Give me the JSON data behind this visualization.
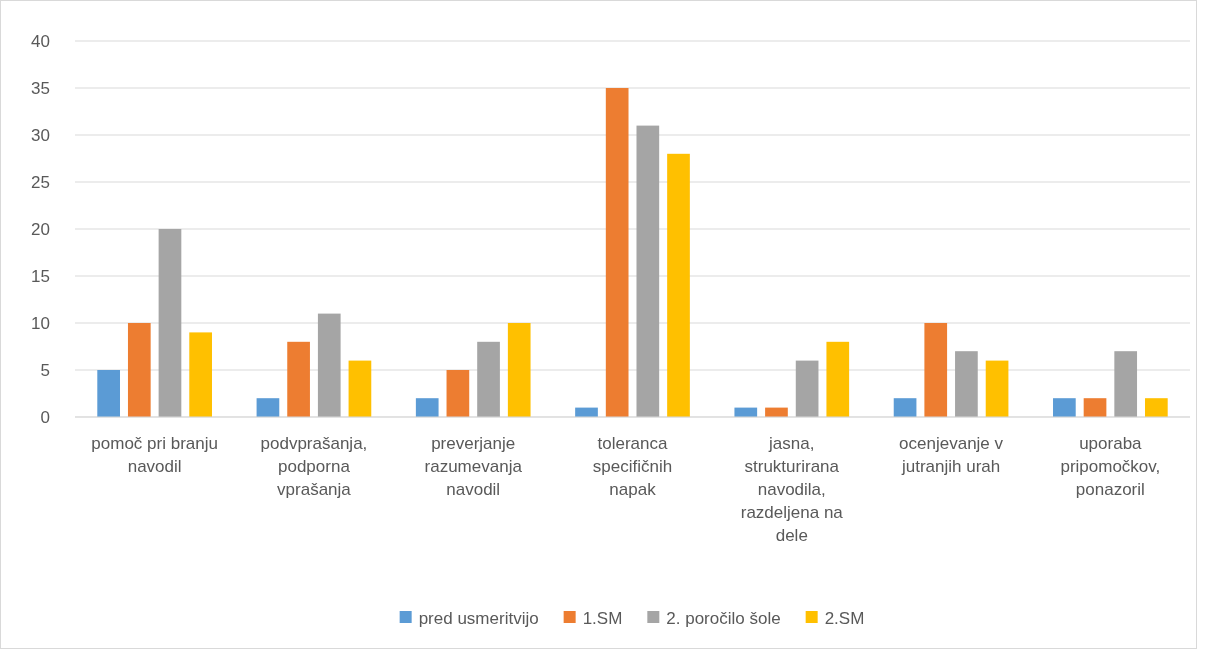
{
  "chart_data": {
    "type": "bar",
    "categories": [
      "pomoč pri branju navodil",
      "podvprašanja, podporna vprašanja",
      "preverjanje razumevanja navodil",
      "toleranca specifičnih napak",
      "jasna, strukturirana navodila, razdeljena na dele",
      "ocenjevanje v jutranjih urah",
      "uporaba pripomočkov, ponazoril"
    ],
    "series": [
      {
        "name": "pred usmeritvijo",
        "color": "#5b9bd5",
        "values": [
          5,
          2,
          2,
          1,
          1,
          2,
          2
        ]
      },
      {
        "name": "1.SM",
        "color": "#ed7d31",
        "values": [
          10,
          8,
          5,
          35,
          1,
          10,
          2
        ]
      },
      {
        "name": "2. poročilo šole",
        "color": "#a5a5a5",
        "values": [
          20,
          11,
          8,
          31,
          6,
          7,
          7
        ]
      },
      {
        "name": "2.SM",
        "color": "#ffc000",
        "values": [
          9,
          6,
          10,
          28,
          8,
          6,
          2
        ]
      }
    ],
    "ylim": [
      0,
      40
    ],
    "yticks": [
      0,
      5,
      10,
      15,
      20,
      25,
      30,
      35,
      40
    ],
    "grid": "y",
    "legend": "bottom"
  }
}
